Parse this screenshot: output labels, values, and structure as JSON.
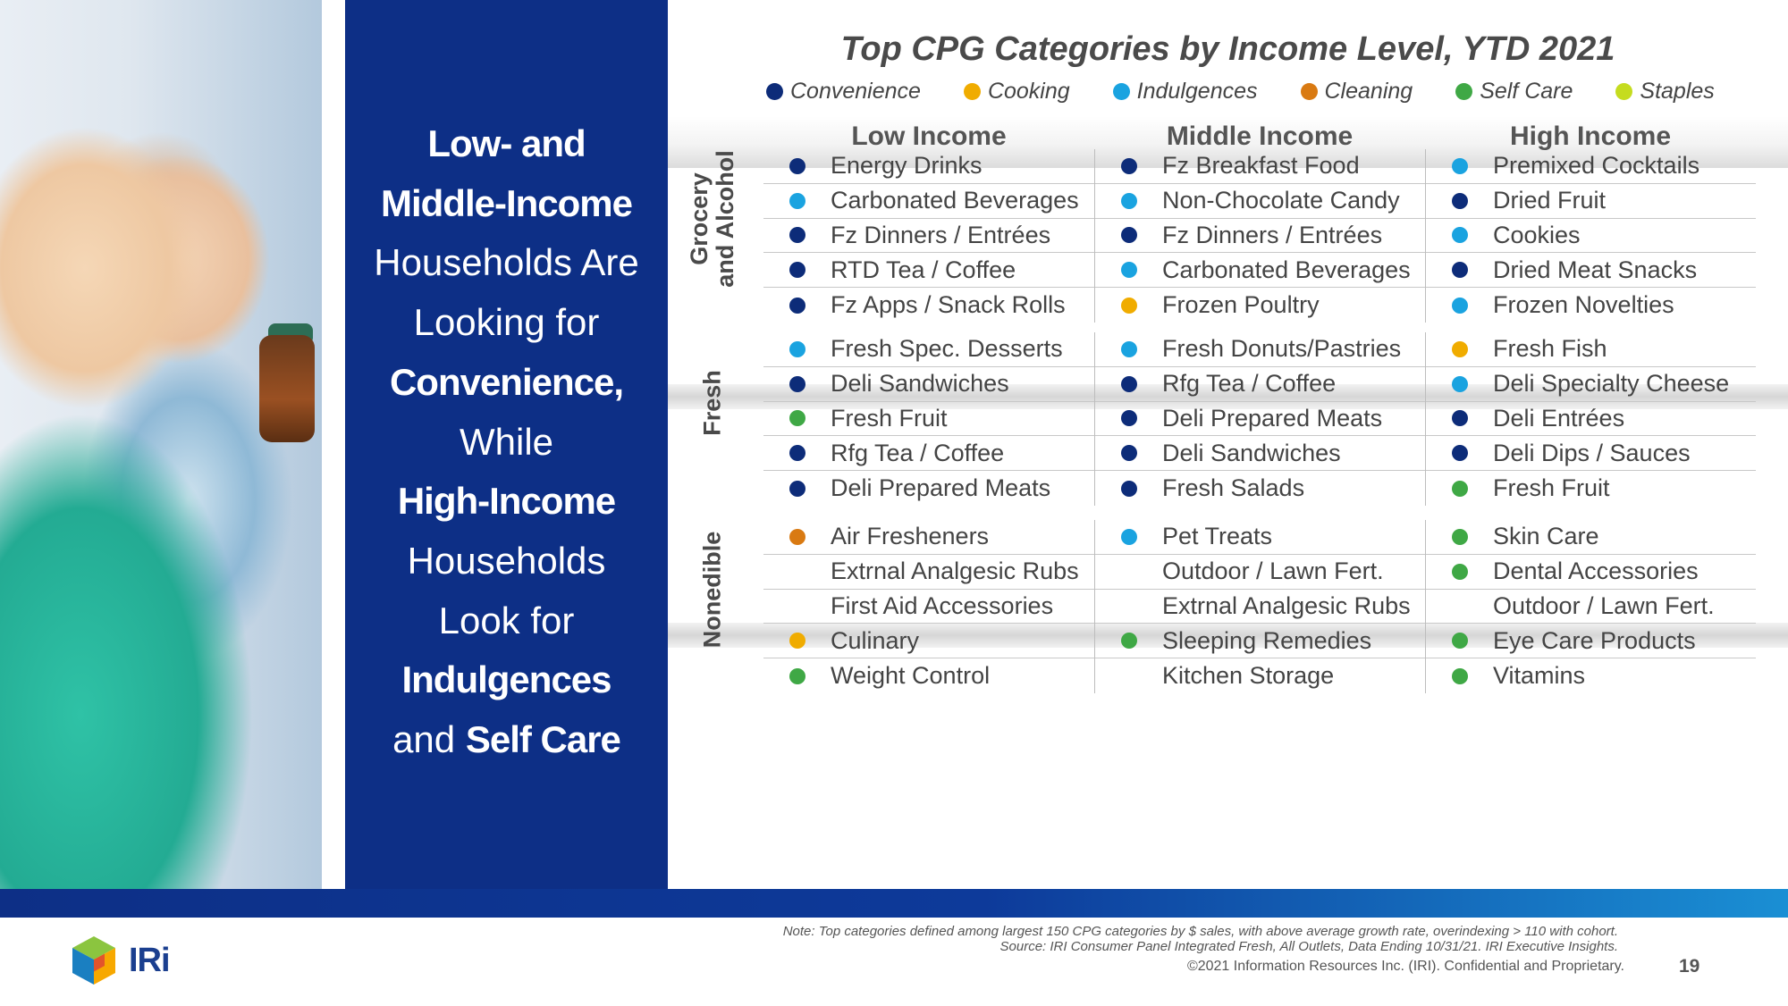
{
  "headline": {
    "lines": [
      {
        "bold": "Low- and",
        "rest": ""
      },
      {
        "bold": "Middle-Income",
        "rest": ""
      },
      {
        "bold": "",
        "rest": "Households Are"
      },
      {
        "bold": "",
        "rest": "Looking for"
      },
      {
        "bold": "Convenience,",
        "rest": ""
      },
      {
        "bold": "",
        "rest": "While"
      },
      {
        "bold": "High-Income",
        "rest": ""
      },
      {
        "bold": "",
        "rest": "Households"
      },
      {
        "bold": "",
        "rest": "Look for"
      },
      {
        "bold": "Indulgences",
        "rest": ""
      },
      {
        "pre": "and ",
        "bold": "Self Care",
        "rest": ""
      }
    ]
  },
  "title": "Top CPG Categories by Income Level, YTD 2021",
  "colors": {
    "convenience": "#0d2c79",
    "cooking": "#f0ac00",
    "indulgences": "#1aa3e0",
    "cleaning": "#d97a12",
    "self_care": "#3fa845",
    "staples": "#c5dc1f",
    "navy_panel": "#0d2f86"
  },
  "legend": [
    {
      "label": "Convenience",
      "key": "convenience"
    },
    {
      "label": "Cooking",
      "key": "cooking"
    },
    {
      "label": "Indulgences",
      "key": "indulgences"
    },
    {
      "label": "Cleaning",
      "key": "cleaning"
    },
    {
      "label": "Self Care",
      "key": "self_care"
    },
    {
      "label": "Staples",
      "key": "staples"
    }
  ],
  "columns": [
    "Low Income",
    "Middle Income",
    "High Income"
  ],
  "sections": [
    {
      "label_lines": [
        "Grocery",
        "and Alcohol"
      ],
      "columns": [
        [
          {
            "text": "Energy Drinks",
            "cat": "convenience"
          },
          {
            "text": "Carbonated Beverages",
            "cat": "indulgences"
          },
          {
            "text": "Fz Dinners / Entrées",
            "cat": "convenience"
          },
          {
            "text": "RTD Tea / Coffee",
            "cat": "convenience"
          },
          {
            "text": "Fz Apps / Snack Rolls",
            "cat": "convenience"
          }
        ],
        [
          {
            "text": "Fz Breakfast Food",
            "cat": "convenience"
          },
          {
            "text": "Non-Chocolate Candy",
            "cat": "indulgences"
          },
          {
            "text": "Fz Dinners / Entrées",
            "cat": "convenience"
          },
          {
            "text": "Carbonated Beverages",
            "cat": "indulgences"
          },
          {
            "text": "Frozen Poultry",
            "cat": "cooking"
          }
        ],
        [
          {
            "text": "Premixed Cocktails",
            "cat": "indulgences"
          },
          {
            "text": "Dried Fruit",
            "cat": "convenience"
          },
          {
            "text": "Cookies",
            "cat": "indulgences"
          },
          {
            "text": "Dried Meat Snacks",
            "cat": "convenience"
          },
          {
            "text": "Frozen Novelties",
            "cat": "indulgences"
          }
        ]
      ]
    },
    {
      "label_lines": [
        "Fresh"
      ],
      "columns": [
        [
          {
            "text": "Fresh Spec. Desserts",
            "cat": "indulgences"
          },
          {
            "text": "Deli Sandwiches",
            "cat": "convenience"
          },
          {
            "text": "Fresh Fruit",
            "cat": "self_care"
          },
          {
            "text": "Rfg Tea / Coffee",
            "cat": "convenience"
          },
          {
            "text": "Deli Prepared Meats",
            "cat": "convenience"
          }
        ],
        [
          {
            "text": "Fresh Donuts/Pastries",
            "cat": "indulgences"
          },
          {
            "text": "Rfg Tea / Coffee",
            "cat": "convenience"
          },
          {
            "text": "Deli Prepared Meats",
            "cat": "convenience"
          },
          {
            "text": "Deli Sandwiches",
            "cat": "convenience"
          },
          {
            "text": "Fresh Salads",
            "cat": "convenience"
          }
        ],
        [
          {
            "text": "Fresh Fish",
            "cat": "cooking"
          },
          {
            "text": "Deli Specialty Cheese",
            "cat": "indulgences"
          },
          {
            "text": "Deli Entrées",
            "cat": "convenience"
          },
          {
            "text": "Deli Dips / Sauces",
            "cat": "convenience"
          },
          {
            "text": "Fresh Fruit",
            "cat": "self_care"
          }
        ]
      ]
    },
    {
      "label_lines": [
        "Nonedible"
      ],
      "columns": [
        [
          {
            "text": "Air Fresheners",
            "cat": "cleaning"
          },
          {
            "text": "Extrnal Analgesic Rubs",
            "cat": ""
          },
          {
            "text": "First Aid Accessories",
            "cat": ""
          },
          {
            "text": "Culinary",
            "cat": "cooking"
          },
          {
            "text": "Weight Control",
            "cat": "self_care"
          }
        ],
        [
          {
            "text": "Pet Treats",
            "cat": "indulgences"
          },
          {
            "text": "Outdoor / Lawn Fert.",
            "cat": ""
          },
          {
            "text": "Extrnal Analgesic Rubs",
            "cat": ""
          },
          {
            "text": "Sleeping Remedies",
            "cat": "self_care"
          },
          {
            "text": "Kitchen Storage",
            "cat": ""
          }
        ],
        [
          {
            "text": "Skin Care",
            "cat": "self_care"
          },
          {
            "text": "Dental Accessories",
            "cat": "self_care"
          },
          {
            "text": "Outdoor / Lawn Fert.",
            "cat": ""
          },
          {
            "text": "Eye Care Products",
            "cat": "self_care"
          },
          {
            "text": "Vitamins",
            "cat": "self_care"
          }
        ]
      ]
    }
  ],
  "footer": {
    "logo_text": "IRi",
    "note_line1": "Note: Top categories defined among largest 150 CPG categories by $ sales, with above average growth rate, overindexing > 110 with cohort.",
    "note_line2": "Source: IRI Consumer Panel Integrated Fresh, All Outlets, Data Ending 10/31/21. IRI Executive Insights.",
    "copyright": "©2021 Information Resources Inc. (IRI). Confidential and Proprietary.",
    "page_number": "19"
  }
}
